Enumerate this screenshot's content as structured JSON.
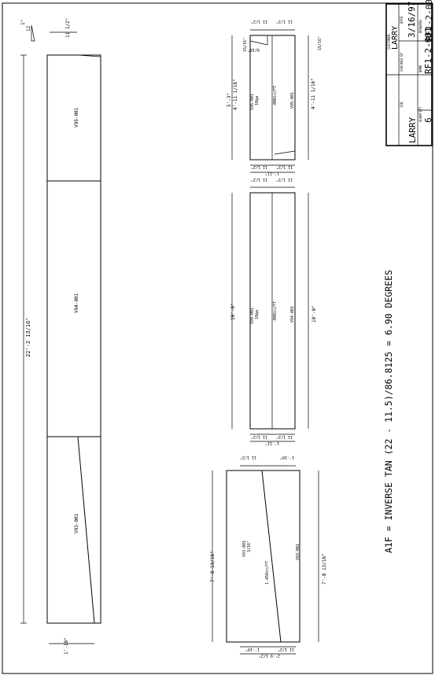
{
  "title_block": {
    "customer_caption": "CUSTOMER",
    "customer": "LARRY",
    "date_caption": "DATE",
    "date": "3/16/97",
    "job_caption": "JOB",
    "job": "LARRY",
    "checked_caption": "CHECKED BY",
    "drawing_caption": "DRAWING",
    "drawing": "RF1-2-001",
    "name_caption": "NAME",
    "name": "RF1-2-001",
    "quantity_caption": "QUANTITY",
    "quantity": "6"
  },
  "formula": "A1F = INVERSE TAN (22 - 11.5)/86.8125 = 6.90 DEGREES",
  "overall": {
    "length": "22'-2 13/16\"",
    "slope_num": "1\"",
    "slope_den": "12",
    "top_width": "11 1/2\"",
    "bottom_width": "1'-10\"",
    "segments": [
      "V95-001",
      "V94-001",
      "V93-001"
    ]
  },
  "pieces": {
    "v95": {
      "length_top": "5'-3\"",
      "length_inner": "4'-11 1/16\"",
      "length_bottom": "4'-11 1/16\"",
      "end_dim_top": "15/16\"",
      "end_dim_bottom": "15/16\"",
      "label_a": "V95-001",
      "label_b": "10ga",
      "label_c": ".000in/FT",
      "label_d": "V95-001",
      "corner": "9/16\"",
      "w1": "11 1/2\"",
      "w2": "11 1/2\"",
      "w3": "11 1/2\"",
      "w4": "11 1/2\"",
      "total": "1'-11\""
    },
    "v94": {
      "length_top": "10'-0\"",
      "length_bottom": "10'-0\"",
      "label_a": "V94-001",
      "label_b": "10ga",
      "label_c": ".000in/FT",
      "label_d": "V94-001",
      "w1": "11 1/2\"",
      "w2": "11 1/2\"",
      "w3": "11 1/2\"",
      "w4": "11 1/2\"",
      "total": "1'-11\""
    },
    "v93": {
      "length_top": "7'-8 13/16\"",
      "length_bottom": "7'-8 13/16\"",
      "label_a": "V93-001",
      "label_b": "3/16\"",
      "label_c": "1.450in/FT",
      "label_d": "V93-001",
      "w1": "11 1/2\"",
      "w2": "1'-10\"",
      "w3": "1'-10\"",
      "w4": "11 1/2\"",
      "total": "2'-9 1/2\""
    }
  }
}
